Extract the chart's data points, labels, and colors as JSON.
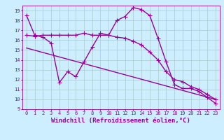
{
  "title": "",
  "xlabel": "Windchill (Refroidissement éolien,°C)",
  "ylabel": "",
  "background_color": "#cceeff",
  "line_color": "#990099",
  "grid_color": "#aacccc",
  "ylim": [
    9,
    19.5
  ],
  "xlim": [
    -0.5,
    23.5
  ],
  "yticks": [
    9,
    10,
    11,
    12,
    13,
    14,
    15,
    16,
    17,
    18,
    19
  ],
  "xticks": [
    0,
    1,
    2,
    3,
    4,
    5,
    6,
    7,
    8,
    9,
    10,
    11,
    12,
    13,
    14,
    15,
    16,
    17,
    18,
    19,
    20,
    21,
    22,
    23
  ],
  "line1_x": [
    0,
    1,
    2,
    3,
    4,
    5,
    6,
    7,
    8,
    9,
    10,
    11,
    12,
    13,
    14,
    15,
    16,
    17,
    18,
    19,
    20,
    21,
    22,
    23
  ],
  "line1_y": [
    18.5,
    16.5,
    16.3,
    15.7,
    11.7,
    12.8,
    12.3,
    13.8,
    15.3,
    16.7,
    16.5,
    18.0,
    18.4,
    19.3,
    19.1,
    18.5,
    16.2,
    13.8,
    11.5,
    11.1,
    11.1,
    10.8,
    10.2,
    9.6
  ],
  "line2_x": [
    0,
    1,
    2,
    3,
    4,
    5,
    6,
    7,
    8,
    9,
    10,
    11,
    12,
    13,
    14,
    15,
    16,
    17,
    18,
    19,
    20,
    21,
    22,
    23
  ],
  "line2_y": [
    16.5,
    16.4,
    16.5,
    16.5,
    16.5,
    16.5,
    16.5,
    16.7,
    16.5,
    16.5,
    16.5,
    16.3,
    16.2,
    15.9,
    15.5,
    14.8,
    14.0,
    12.8,
    12.0,
    11.8,
    11.3,
    11.0,
    10.5,
    10.0
  ],
  "line3_x": [
    0,
    23
  ],
  "line3_y": [
    15.2,
    10.0
  ],
  "marker_size": 3,
  "linewidth": 1.0,
  "tick_fontsize": 5,
  "xlabel_fontsize": 6.5
}
